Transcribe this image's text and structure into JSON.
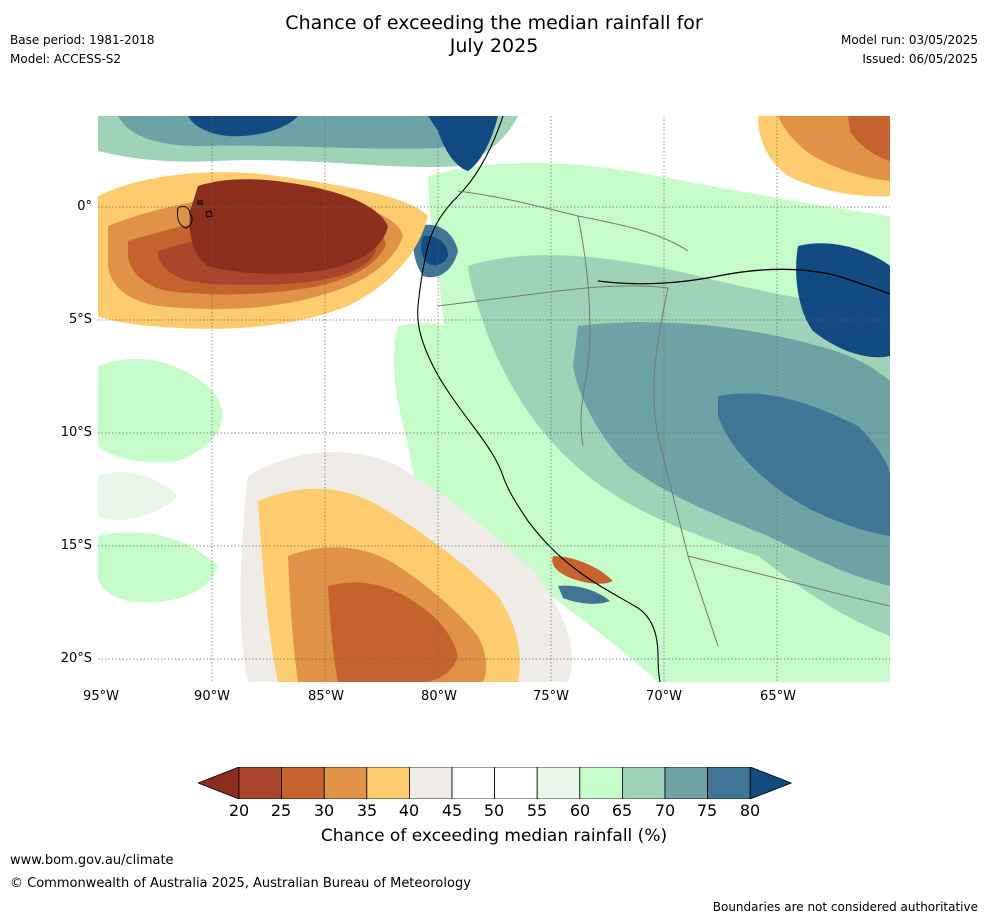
{
  "header": {
    "title_line1": "Chance of exceeding the median rainfall for",
    "title_line2": "July 2025",
    "base_period": "Base period: 1981-2018",
    "model": "Model: ACCESS-S2",
    "model_run": "Model run: 03/05/2025",
    "issued": "Issued: 06/05/2025"
  },
  "map": {
    "region": "Western South America",
    "lat_labels": [
      "0°",
      "5°S",
      "10°S",
      "15°S",
      "20°S"
    ],
    "lon_labels": [
      "95°W",
      "90°W",
      "85°W",
      "80°W",
      "75°W",
      "70°W",
      "65°W"
    ]
  },
  "legend": {
    "ticks": [
      "20",
      "25",
      "30",
      "35",
      "40",
      "45",
      "50",
      "55",
      "60",
      "65",
      "70",
      "75",
      "80"
    ],
    "label": "Chance of exceeding median rainfall (%)",
    "colors": [
      "#8b2e1e",
      "#a9452a",
      "#c5622e",
      "#e09346",
      "#fdcc6e",
      "#efebe7",
      "#ffffff",
      "#ffffff",
      "#e9f6ea",
      "#c6fcca",
      "#9fd3b8",
      "#6ea3a6",
      "#417596",
      "#124b82"
    ]
  },
  "footer": {
    "website": "www.bom.gov.au/climate",
    "copyright": "© Commonwealth of Australia 2025, Australian Bureau of Meteorology",
    "disclaimer": "Boundaries are not considered authoritative"
  }
}
